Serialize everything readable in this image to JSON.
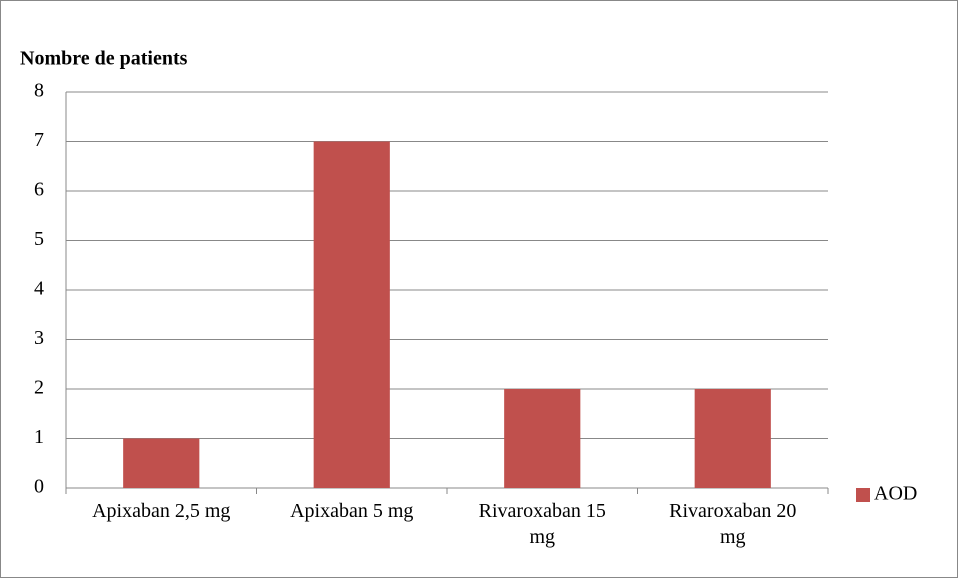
{
  "chart_data": {
    "type": "bar",
    "title": "Nombre de patients",
    "categories": [
      "Apixaban 2,5 mg",
      "Apixaban 5 mg",
      "Rivaroxaban 15 mg",
      "Rivaroxaban 20 mg"
    ],
    "series": [
      {
        "name": "AOD",
        "color": "#c0504d",
        "values": [
          1,
          7,
          2,
          2
        ]
      }
    ],
    "ylim": [
      0,
      8
    ],
    "yticks": [
      0,
      1,
      2,
      3,
      4,
      5,
      6,
      7,
      8
    ],
    "grid": true,
    "legend": "right"
  }
}
